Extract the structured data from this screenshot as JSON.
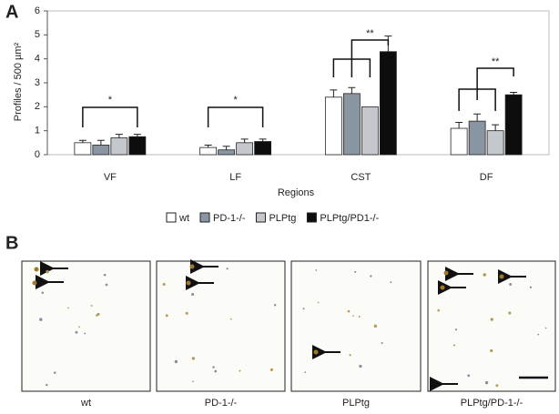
{
  "panel_labels": [
    "A",
    "B"
  ],
  "chart_data": {
    "type": "bar",
    "y_label": "Profiles / 500 µm²",
    "x_label": "Regions",
    "categories": [
      "VF",
      "LF",
      "CST",
      "DF"
    ],
    "series": [
      {
        "name": "wt",
        "color": "#ffffff",
        "values": [
          0.5,
          0.3,
          2.4,
          1.1
        ],
        "errors": [
          0.1,
          0.1,
          0.3,
          0.25
        ]
      },
      {
        "name": "PD-1-/-",
        "color": "#8a95a2",
        "values": [
          0.4,
          0.2,
          2.55,
          1.4
        ],
        "errors": [
          0.2,
          0.15,
          0.25,
          0.3
        ]
      },
      {
        "name": "PLPtg",
        "color": "#c4c8cd",
        "values": [
          0.7,
          0.5,
          2.0,
          1.0
        ],
        "errors": [
          0.15,
          0.15,
          null,
          0.25
        ]
      },
      {
        "name": "PLPtg/PD1-/-",
        "color": "#0d0d0d",
        "values": [
          0.75,
          0.55,
          4.3,
          2.5
        ],
        "errors": [
          0.1,
          0.1,
          0.65,
          0.1
        ]
      }
    ],
    "significance": [
      "*",
      "*",
      "**",
      "**"
    ],
    "ylim": [
      0,
      6
    ],
    "yticks": [
      0,
      1,
      2,
      3,
      4,
      5,
      6
    ]
  },
  "images": {
    "captions": [
      "wt",
      "PD-1-/-",
      "PLPtg",
      "PLPtg/PD-1-/-"
    ]
  }
}
